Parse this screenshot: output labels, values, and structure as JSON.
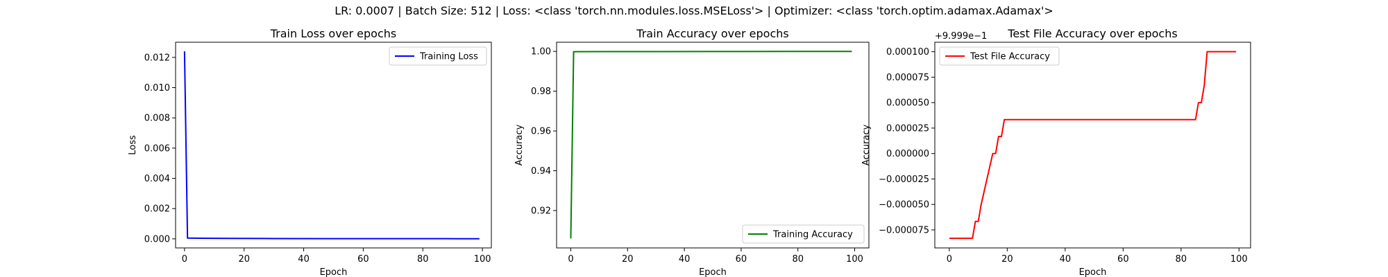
{
  "figure": {
    "suptitle": "LR: 0.0007 | Batch Size: 512 | Loss: <class 'torch.nn.modules.loss.MSELoss'> | Optimizer: <class 'torch.optim.adamax.Adamax'>"
  },
  "chart_data": [
    {
      "type": "line",
      "title": "Train Loss over epochs",
      "xlabel": "Epoch",
      "ylabel": "Loss",
      "xlim": [
        -3,
        103
      ],
      "ylim": [
        -0.0006,
        0.013
      ],
      "xticks": [
        0,
        20,
        40,
        60,
        80,
        100
      ],
      "xtick_labels": [
        "0",
        "20",
        "40",
        "60",
        "80",
        "100"
      ],
      "yticks": [
        0.0,
        0.002,
        0.004,
        0.006,
        0.008,
        0.01,
        0.012
      ],
      "ytick_labels": [
        "0.000",
        "0.002",
        "0.004",
        "0.006",
        "0.008",
        "0.010",
        "0.012"
      ],
      "y_offset_text": "",
      "grid": false,
      "legend_position": "upper right",
      "series": [
        {
          "name": "Training Loss",
          "color": "#0000ff",
          "points": [
            [
              0,
              0.0124
            ],
            [
              1,
              5e-05
            ],
            [
              5,
              4e-05
            ],
            [
              15,
              3e-05
            ],
            [
              30,
              2e-05
            ],
            [
              50,
              1.5e-05
            ],
            [
              70,
              1e-05
            ],
            [
              88,
              1e-05
            ],
            [
              92,
              5e-06
            ],
            [
              99,
              5e-06
            ]
          ]
        }
      ]
    },
    {
      "type": "line",
      "title": "Train Accuracy over epochs",
      "xlabel": "Epoch",
      "ylabel": "Accuracy",
      "xlim": [
        -5,
        105
      ],
      "ylim": [
        0.9012,
        1.0046
      ],
      "xticks": [
        0,
        20,
        40,
        60,
        80,
        100
      ],
      "xtick_labels": [
        "0",
        "20",
        "40",
        "60",
        "80",
        "100"
      ],
      "yticks": [
        0.92,
        0.94,
        0.96,
        0.98,
        1.0
      ],
      "ytick_labels": [
        "0.92",
        "0.94",
        "0.96",
        "0.98",
        "1.00"
      ],
      "y_offset_text": "",
      "grid": false,
      "legend_position": "lower right",
      "series": [
        {
          "name": "Training Accuracy",
          "color": "#008000",
          "points": [
            [
              0,
              0.906
            ],
            [
              1,
              0.99985
            ],
            [
              10,
              0.9999
            ],
            [
              30,
              0.99992
            ],
            [
              60,
              0.99995
            ],
            [
              90,
              0.99998
            ],
            [
              99,
              1.0
            ]
          ]
        }
      ]
    },
    {
      "type": "line",
      "title": "Test File Accuracy over epochs",
      "xlabel": "Epoch",
      "ylabel": "Accuracy",
      "xlim": [
        -5,
        104
      ],
      "ylim": [
        -9.27e-05,
        0.0001093
      ],
      "xticks": [
        0,
        20,
        40,
        60,
        80,
        100
      ],
      "xtick_labels": [
        "0",
        "20",
        "40",
        "60",
        "80",
        "100"
      ],
      "yticks": [
        -7.5e-05,
        -5e-05,
        -2.5e-05,
        0.0,
        2.5e-05,
        5e-05,
        7.5e-05,
        0.0001
      ],
      "ytick_labels": [
        "−0.000075",
        "−0.000050",
        "−0.000025",
        "0.000000",
        "0.000025",
        "0.000050",
        "0.000075",
        "0.000100"
      ],
      "y_offset_text": "+9.999e−1",
      "grid": false,
      "legend_position": "upper left",
      "series": [
        {
          "name": "Test File Accuracy",
          "color": "#ff0000",
          "points": [
            [
              0,
              -8.33e-05
            ],
            [
              8,
              -8.33e-05
            ],
            [
              9,
              -6.67e-05
            ],
            [
              10,
              -6.67e-05
            ],
            [
              11,
              -5e-05
            ],
            [
              15,
              0.0
            ],
            [
              16,
              0.0
            ],
            [
              17,
              1.67e-05
            ],
            [
              18,
              1.67e-05
            ],
            [
              19,
              3.33e-05
            ],
            [
              85,
              3.33e-05
            ],
            [
              86,
              5e-05
            ],
            [
              87,
              5e-05
            ],
            [
              88,
              6.67e-05
            ],
            [
              89,
              0.0001
            ],
            [
              99,
              0.0001
            ]
          ]
        }
      ]
    }
  ]
}
